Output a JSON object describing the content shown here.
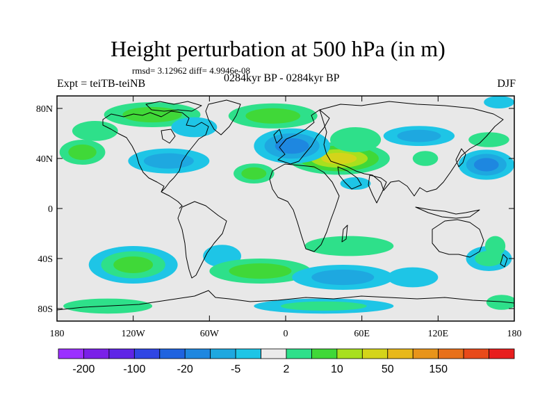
{
  "title": "Height perturbation at 500 hPa (in m)",
  "stats_text": "rmsd= 3.12962 diff= 4.9946e-08",
  "expt_label": "Expt = teiTB-teiNB",
  "period_label": "0284kyr BP - 0284kyr BP",
  "season_label": "DJF",
  "map": {
    "projection": "cylindrical-equidistant",
    "lon_range": [
      -180,
      180
    ],
    "lat_range": [
      -90,
      90
    ],
    "background_color": "#e8e8e8",
    "x_ticks": [
      {
        "lon": -180,
        "label": "180"
      },
      {
        "lon": -120,
        "label": "120W"
      },
      {
        "lon": -60,
        "label": "60W"
      },
      {
        "lon": 0,
        "label": "0"
      },
      {
        "lon": 60,
        "label": "60E"
      },
      {
        "lon": 120,
        "label": "120E"
      },
      {
        "lon": 180,
        "label": "180"
      }
    ],
    "y_ticks": [
      {
        "lat": 80,
        "label": "80N"
      },
      {
        "lat": 40,
        "label": "40N"
      },
      {
        "lat": 0,
        "label": "0"
      },
      {
        "lat": -40,
        "label": "40S"
      },
      {
        "lat": -80,
        "label": "80S"
      }
    ]
  },
  "colorbar": {
    "colors": [
      "#9b30ff",
      "#7a20e8",
      "#5f25e6",
      "#3046e4",
      "#1f63e0",
      "#1e87e0",
      "#1ea8e0",
      "#1ec5e6",
      "#ebebeb",
      "#2ee08a",
      "#40d838",
      "#a8e01e",
      "#d4d41a",
      "#e8b81a",
      "#e8941a",
      "#e8701a",
      "#e84a1a",
      "#e81e1e"
    ],
    "labels": [
      {
        "after_box": 1,
        "text": "-200"
      },
      {
        "after_box": 3,
        "text": "-100"
      },
      {
        "after_box": 5,
        "text": "-20"
      },
      {
        "after_box": 7,
        "text": "-5"
      },
      {
        "after_box": 9,
        "text": "2"
      },
      {
        "after_box": 11,
        "text": "10"
      },
      {
        "after_box": 13,
        "text": "50"
      },
      {
        "after_box": 15,
        "text": "150"
      }
    ]
  },
  "anomalies": [
    {
      "lon": 42,
      "lat": 40,
      "rx": 40,
      "ry": 13,
      "levels": [
        "#2ee08a",
        "#40d838",
        "#a8e01e",
        "#d4d41a"
      ]
    },
    {
      "lon": 55,
      "lat": 55,
      "rx": 20,
      "ry": 10,
      "levels": [
        "#2ee08a"
      ]
    },
    {
      "lon": 5,
      "lat": 50,
      "rx": 30,
      "ry": 14,
      "levels": [
        "#1ec5e6",
        "#1ea8e0",
        "#1e87e0"
      ]
    },
    {
      "lon": -25,
      "lat": 28,
      "rx": 16,
      "ry": 8,
      "levels": [
        "#2ee08a",
        "#40d838"
      ]
    },
    {
      "lon": -10,
      "lat": 74,
      "rx": 35,
      "ry": 10,
      "levels": [
        "#2ee08a",
        "#40d838"
      ]
    },
    {
      "lon": -105,
      "lat": 75,
      "rx": 38,
      "ry": 10,
      "levels": [
        "#2ee08a",
        "#40d838"
      ]
    },
    {
      "lon": -150,
      "lat": 62,
      "rx": 18,
      "ry": 8,
      "levels": [
        "#2ee08a"
      ]
    },
    {
      "lon": -160,
      "lat": 45,
      "rx": 18,
      "ry": 10,
      "levels": [
        "#2ee08a",
        "#40d838"
      ]
    },
    {
      "lon": -92,
      "lat": 38,
      "rx": 32,
      "ry": 10,
      "levels": [
        "#1ec5e6",
        "#1ea8e0"
      ]
    },
    {
      "lon": -72,
      "lat": 65,
      "rx": 18,
      "ry": 8,
      "levels": [
        "#1ec5e6"
      ]
    },
    {
      "lon": 105,
      "lat": 58,
      "rx": 28,
      "ry": 8,
      "levels": [
        "#1ec5e6",
        "#1ea8e0"
      ]
    },
    {
      "lon": 158,
      "lat": 35,
      "rx": 22,
      "ry": 12,
      "levels": [
        "#1ec5e6",
        "#1ea8e0",
        "#1e87e0"
      ]
    },
    {
      "lon": 168,
      "lat": 85,
      "rx": 12,
      "ry": 5,
      "levels": [
        "#1ec5e6"
      ]
    },
    {
      "lon": 160,
      "lat": 55,
      "rx": 16,
      "ry": 6,
      "levels": [
        "#2ee08a"
      ]
    },
    {
      "lon": 110,
      "lat": 40,
      "rx": 10,
      "ry": 6,
      "levels": [
        "#2ee08a"
      ]
    },
    {
      "lon": 55,
      "lat": 20,
      "rx": 12,
      "ry": 5,
      "levels": [
        "#1ec5e6"
      ]
    },
    {
      "lon": -120,
      "lat": -45,
      "rx": 35,
      "ry": 15,
      "levels": [
        "#1ec5e6",
        "#2ee08a",
        "#40d838"
      ]
    },
    {
      "lon": -50,
      "lat": -38,
      "rx": 15,
      "ry": 9,
      "levels": [
        "#1ec5e6"
      ]
    },
    {
      "lon": -20,
      "lat": -50,
      "rx": 40,
      "ry": 10,
      "levels": [
        "#2ee08a",
        "#40d838"
      ]
    },
    {
      "lon": 50,
      "lat": -30,
      "rx": 35,
      "ry": 8,
      "levels": [
        "#2ee08a"
      ]
    },
    {
      "lon": 45,
      "lat": -55,
      "rx": 40,
      "ry": 10,
      "levels": [
        "#1ec5e6",
        "#1ea8e0"
      ]
    },
    {
      "lon": 100,
      "lat": -55,
      "rx": 20,
      "ry": 8,
      "levels": [
        "#1ec5e6"
      ]
    },
    {
      "lon": 160,
      "lat": -40,
      "rx": 18,
      "ry": 10,
      "levels": [
        "#1ec5e6",
        "#2ee08a"
      ]
    },
    {
      "lon": 30,
      "lat": -78,
      "rx": 55,
      "ry": 6,
      "levels": [
        "#1ec5e6",
        "#2ee08a"
      ]
    },
    {
      "lon": -140,
      "lat": -78,
      "rx": 35,
      "ry": 6,
      "levels": [
        "#2ee08a"
      ]
    },
    {
      "lon": 165,
      "lat": -30,
      "rx": 8,
      "ry": 8,
      "levels": [
        "#2ee08a"
      ]
    },
    {
      "lon": 170,
      "lat": -75,
      "rx": 12,
      "ry": 6,
      "levels": [
        "#2ee08a"
      ]
    }
  ]
}
